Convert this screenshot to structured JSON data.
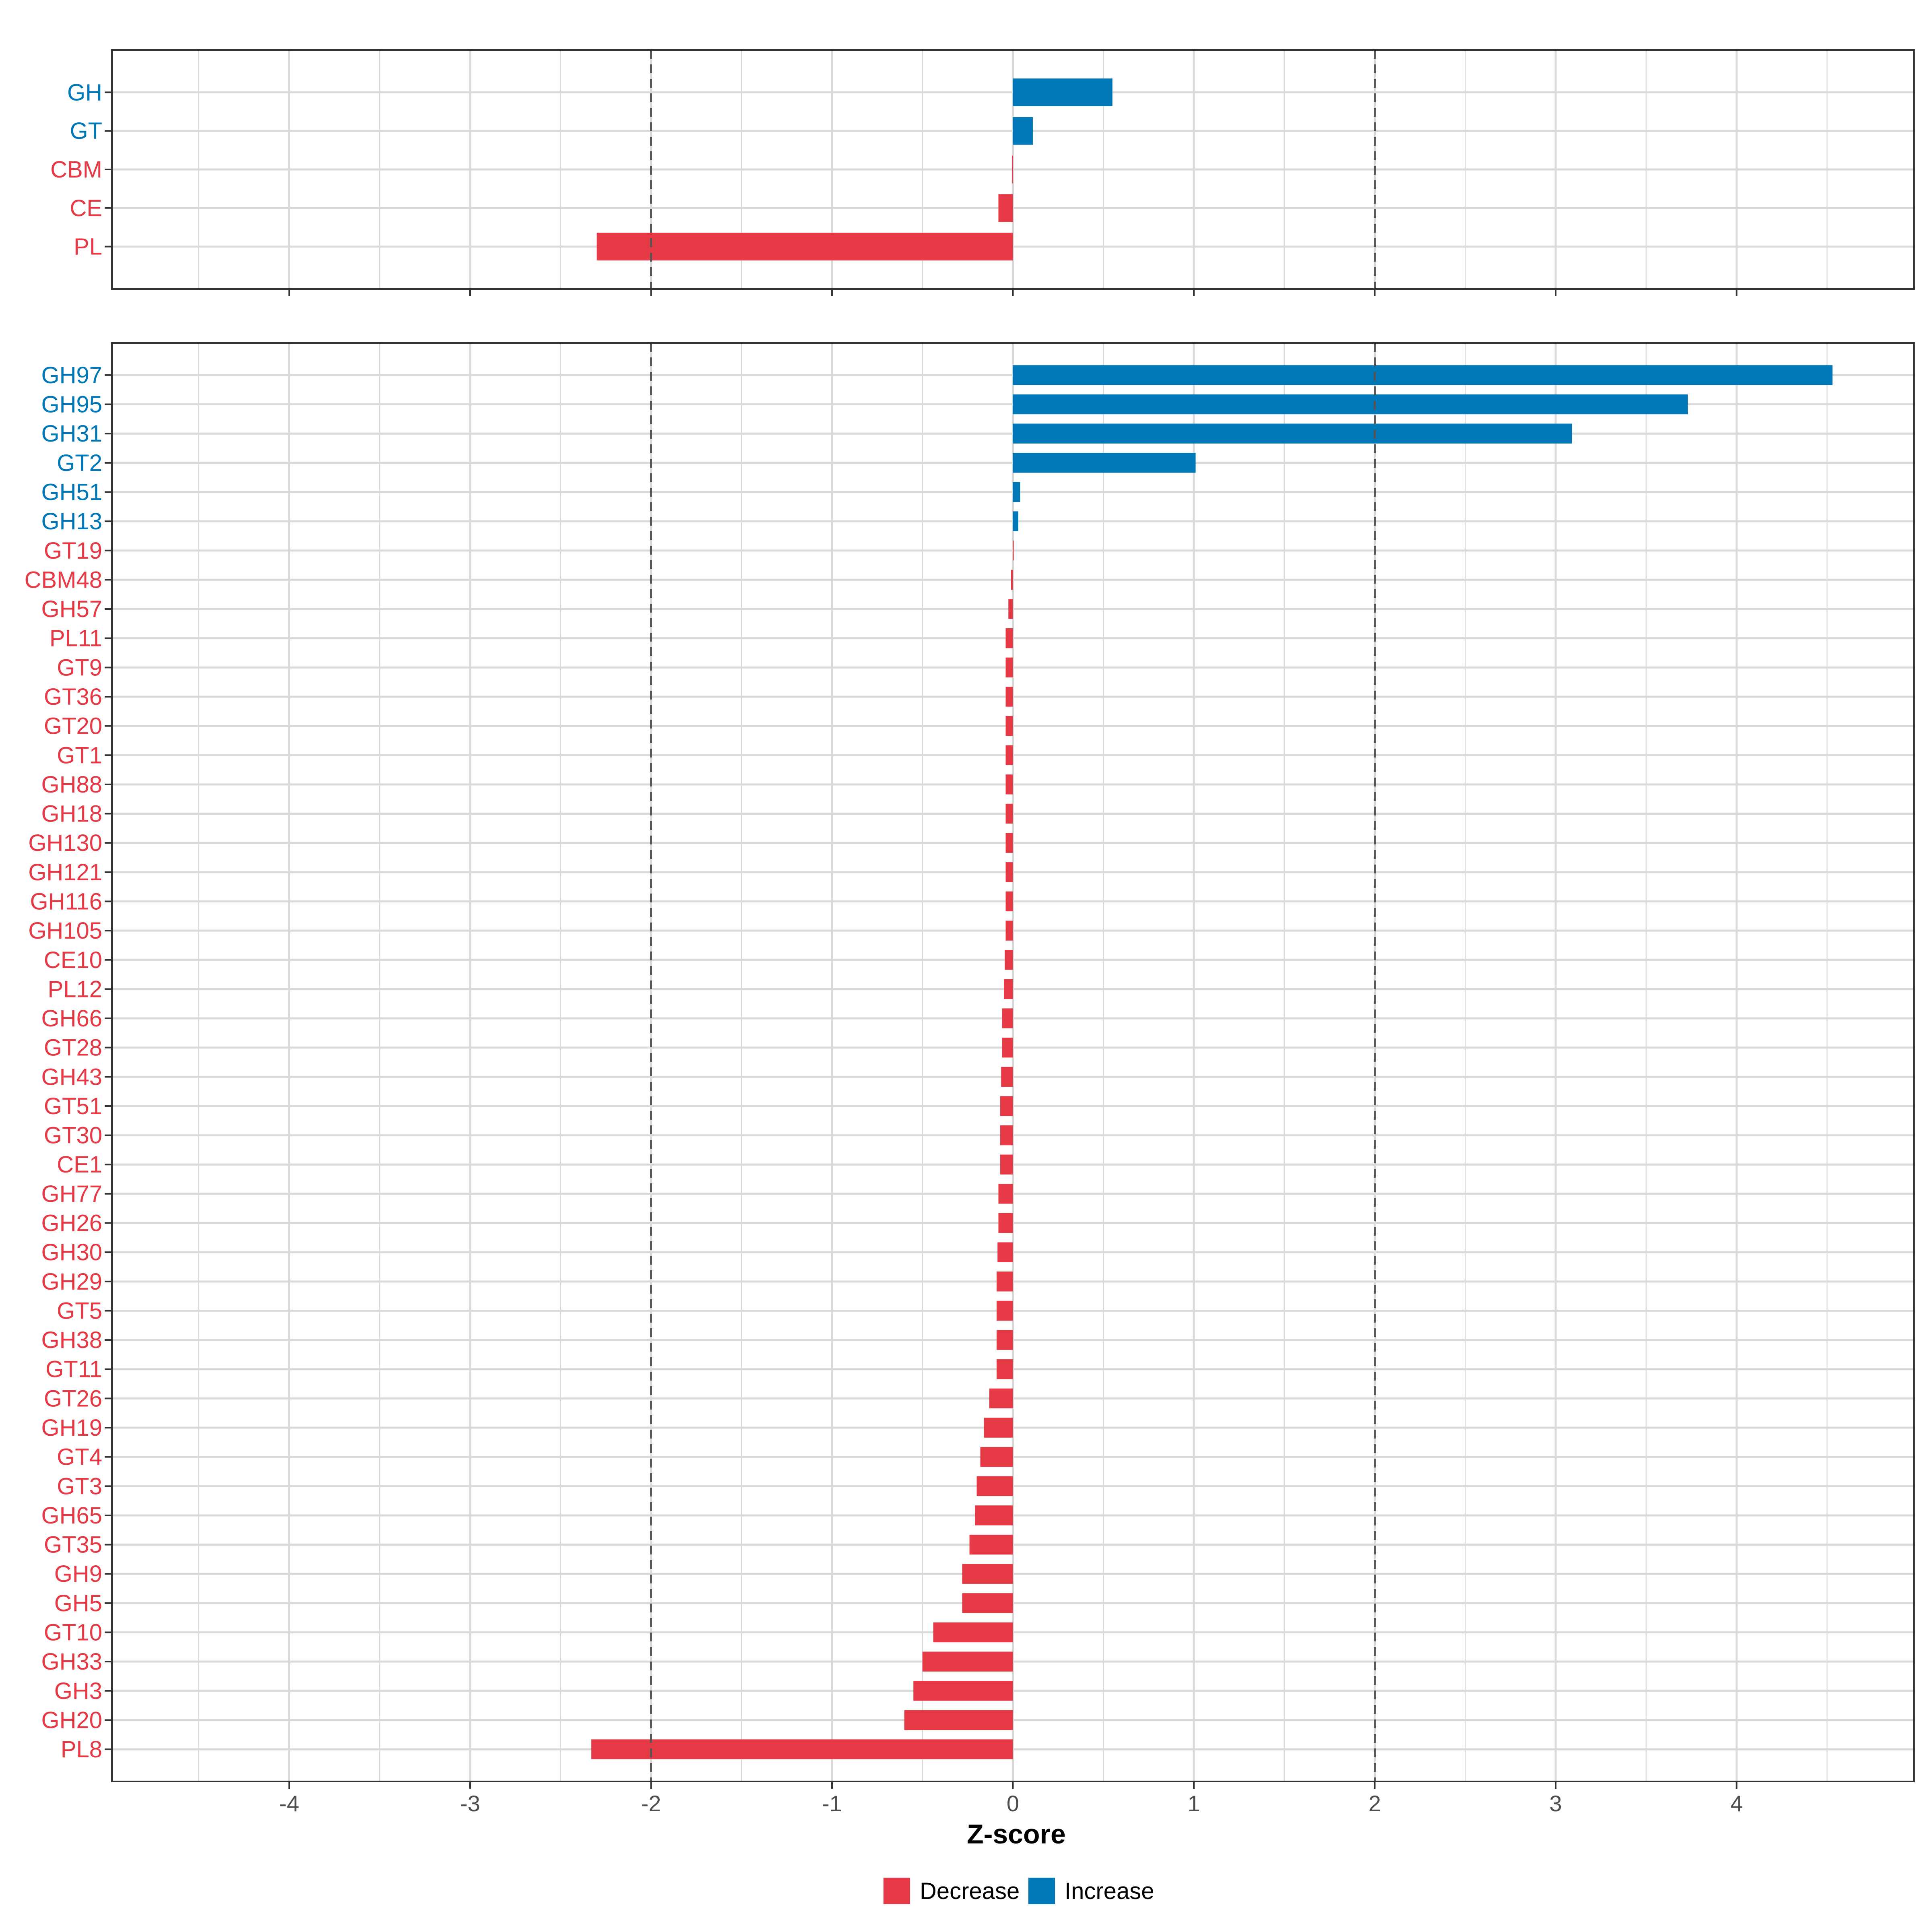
{
  "chart_data": [
    {
      "type": "bar",
      "orientation": "horizontal",
      "categories": [
        "GH",
        "GT",
        "CBM",
        "CE",
        "PL"
      ],
      "values": [
        0.55,
        0.11,
        -0.005,
        -0.08,
        -2.3
      ],
      "direction": [
        "Increase",
        "Increase",
        "Decrease",
        "Decrease",
        "Decrease"
      ]
    },
    {
      "type": "bar",
      "orientation": "horizontal",
      "categories": [
        "GH97",
        "GH95",
        "GH31",
        "GT2",
        "GH51",
        "GH13",
        "GT19",
        "CBM48",
        "GH57",
        "PL11",
        "GT9",
        "GT36",
        "GT20",
        "GT1",
        "GH88",
        "GH18",
        "GH130",
        "GH121",
        "GH116",
        "GH105",
        "CE10",
        "PL12",
        "GH66",
        "GT28",
        "GH43",
        "GT51",
        "GT30",
        "CE1",
        "GH77",
        "GH26",
        "GH30",
        "GH29",
        "GT5",
        "GH38",
        "GT11",
        "GT26",
        "GH19",
        "GT4",
        "GT3",
        "GH65",
        "GT35",
        "GH9",
        "GH5",
        "GT10",
        "GH33",
        "GH3",
        "GH20",
        "PL8"
      ],
      "values": [
        4.53,
        3.73,
        3.09,
        1.01,
        0.04,
        0.03,
        0.0,
        -0.01,
        -0.025,
        -0.04,
        -0.04,
        -0.04,
        -0.04,
        -0.04,
        -0.04,
        -0.04,
        -0.04,
        -0.04,
        -0.04,
        -0.04,
        -0.045,
        -0.05,
        -0.06,
        -0.06,
        -0.065,
        -0.07,
        -0.07,
        -0.07,
        -0.08,
        -0.08,
        -0.085,
        -0.09,
        -0.09,
        -0.09,
        -0.09,
        -0.13,
        -0.16,
        -0.18,
        -0.2,
        -0.21,
        -0.24,
        -0.28,
        -0.28,
        -0.44,
        -0.5,
        -0.55,
        -0.6,
        -2.33
      ],
      "direction": [
        "Increase",
        "Increase",
        "Increase",
        "Increase",
        "Increase",
        "Increase",
        "Decrease",
        "Decrease",
        "Decrease",
        "Decrease",
        "Decrease",
        "Decrease",
        "Decrease",
        "Decrease",
        "Decrease",
        "Decrease",
        "Decrease",
        "Decrease",
        "Decrease",
        "Decrease",
        "Decrease",
        "Decrease",
        "Decrease",
        "Decrease",
        "Decrease",
        "Decrease",
        "Decrease",
        "Decrease",
        "Decrease",
        "Decrease",
        "Decrease",
        "Decrease",
        "Decrease",
        "Decrease",
        "Decrease",
        "Decrease",
        "Decrease",
        "Decrease",
        "Decrease",
        "Decrease",
        "Decrease",
        "Decrease",
        "Decrease",
        "Decrease",
        "Decrease",
        "Decrease",
        "Decrease",
        "Decrease"
      ]
    }
  ],
  "shared_axis": {
    "xlabel": "Z-score",
    "xlim": [
      -4.98,
      4.98
    ],
    "ticks": [
      -4,
      -3,
      -2,
      -1,
      0,
      1,
      2,
      3,
      4
    ],
    "tick_labels": [
      "-4",
      "-3",
      "-2",
      "-1",
      "0",
      "1",
      "2",
      "3",
      "4"
    ],
    "reference_lines": [
      -2,
      2
    ],
    "grid": true
  },
  "legend": {
    "position": "bottom",
    "items": [
      {
        "label": "Decrease",
        "color": "#E63946"
      },
      {
        "label": "Increase",
        "color": "#0077B6"
      }
    ]
  },
  "colors": {
    "Decrease": "#E63946",
    "Increase": "#0077B6",
    "grid": "#d9d9d9",
    "panel_border": "#333333",
    "reference_line": "#555555"
  }
}
